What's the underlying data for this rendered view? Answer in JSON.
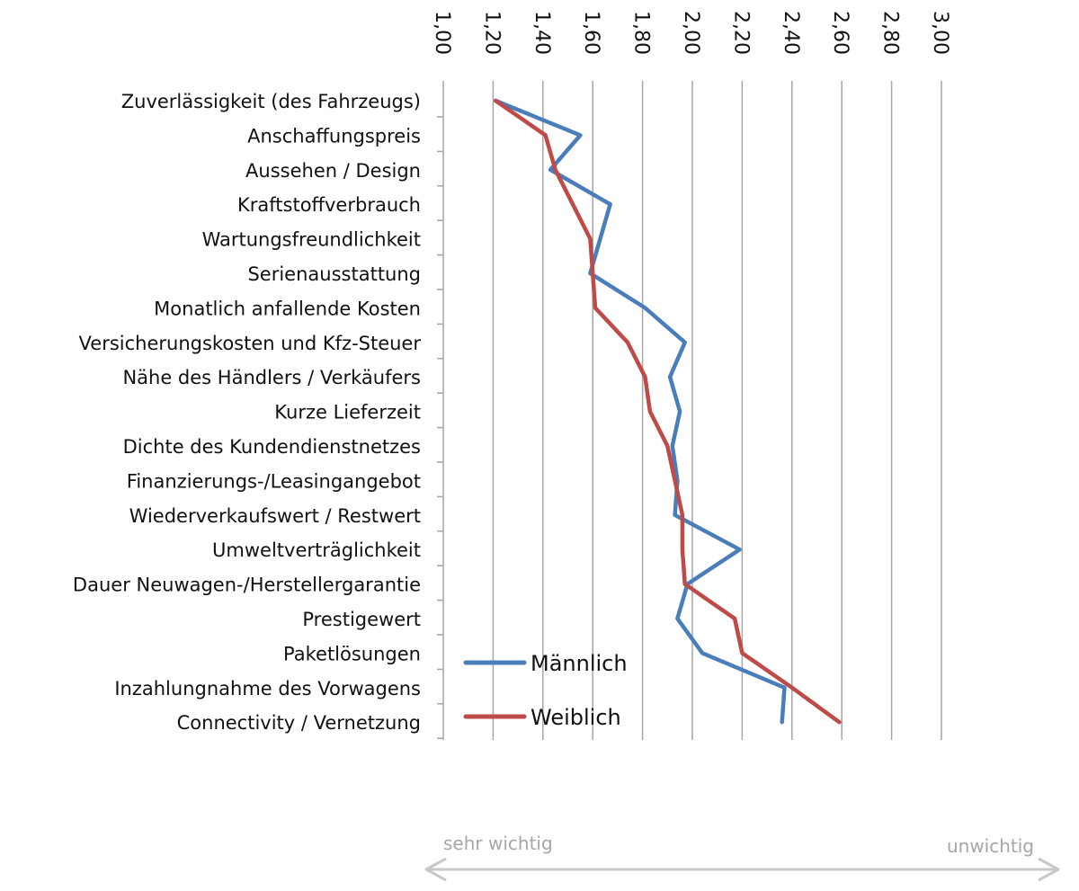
{
  "chart_data": {
    "type": "line",
    "orientation": "horizontal-categories-vertical",
    "title": "",
    "xlabel": "",
    "ylabel": "",
    "xlim": [
      1.0,
      3.0
    ],
    "xticks": [
      "1,00",
      "1,20",
      "1,40",
      "1,60",
      "1,80",
      "2,00",
      "2,20",
      "2,40",
      "2,60",
      "2,80",
      "3,00"
    ],
    "xtick_values": [
      1.0,
      1.2,
      1.4,
      1.6,
      1.8,
      2.0,
      2.2,
      2.4,
      2.6,
      2.8,
      3.0
    ],
    "categories": [
      "Zuverlässigkeit (des Fahrzeugs)",
      "Anschaffungspreis",
      "Aussehen / Design",
      "Kraftstoffverbrauch",
      "Wartungsfreundlichkeit",
      "Serienausstattung",
      "Monatlich anfallende Kosten",
      "Versicherungskosten und Kfz-Steuer",
      "Nähe des Händlers / Verkäufers",
      "Kurze Lieferzeit",
      "Dichte des Kundendienstnetzes",
      "Finanzierungs-/Leasingangebot",
      "Wiederverkaufswert / Restwert",
      "Umweltverträglichkeit",
      "Dauer Neuwagen-/Herstellergarantie",
      "Prestigewert",
      "Paketlösungen",
      "Inzahlungnahme des Vorwagens",
      "Connectivity / Vernetzung"
    ],
    "series": [
      {
        "name": "Männlich",
        "color": "#4a7ebb",
        "values": [
          1.21,
          1.55,
          1.43,
          1.67,
          1.63,
          1.59,
          1.81,
          1.97,
          1.91,
          1.95,
          1.92,
          1.94,
          1.93,
          2.19,
          1.98,
          1.94,
          2.04,
          2.37,
          2.36
        ]
      },
      {
        "name": "Weiblich",
        "color": "#be4b48",
        "values": [
          1.21,
          1.41,
          1.45,
          1.52,
          1.59,
          1.6,
          1.61,
          1.74,
          1.81,
          1.83,
          1.9,
          1.93,
          1.96,
          1.96,
          1.97,
          2.17,
          2.2,
          2.4,
          2.59
        ]
      }
    ],
    "grid": true,
    "legend_position": "bottom-left"
  },
  "scale": {
    "left_label": "sehr wichtig",
    "right_label": "unwichtig"
  },
  "colors": {
    "grid": "#a6a6a6",
    "axis": "#a6a6a6",
    "scale_arrow": "#c8c8c8"
  }
}
